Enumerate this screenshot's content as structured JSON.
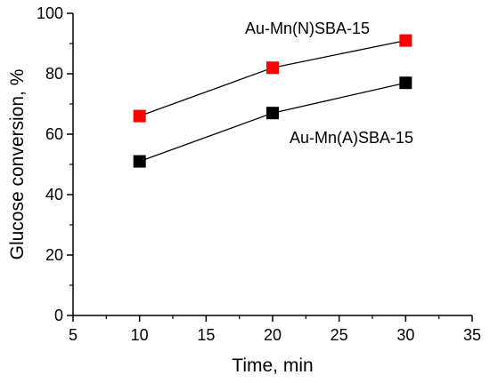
{
  "chart_data": {
    "type": "scatter",
    "title": "",
    "xlabel": "Time, min",
    "ylabel": "Glucose conversion, %",
    "xlim": [
      5,
      35
    ],
    "ylim": [
      0,
      100
    ],
    "xticks": [
      5,
      10,
      15,
      20,
      25,
      30,
      35
    ],
    "yticks": [
      0,
      20,
      40,
      60,
      80,
      100
    ],
    "grid": false,
    "markers_connected": true,
    "series": [
      {
        "name": "Au-Mn(N)SBA-15",
        "color": "#ff0000",
        "x": [
          10,
          20,
          30
        ],
        "y": [
          66,
          82,
          91
        ]
      },
      {
        "name": "Au-Mn(A)SBA-15",
        "color": "#000000",
        "x": [
          10,
          20,
          30
        ],
        "y": [
          51,
          67,
          77
        ]
      }
    ]
  }
}
